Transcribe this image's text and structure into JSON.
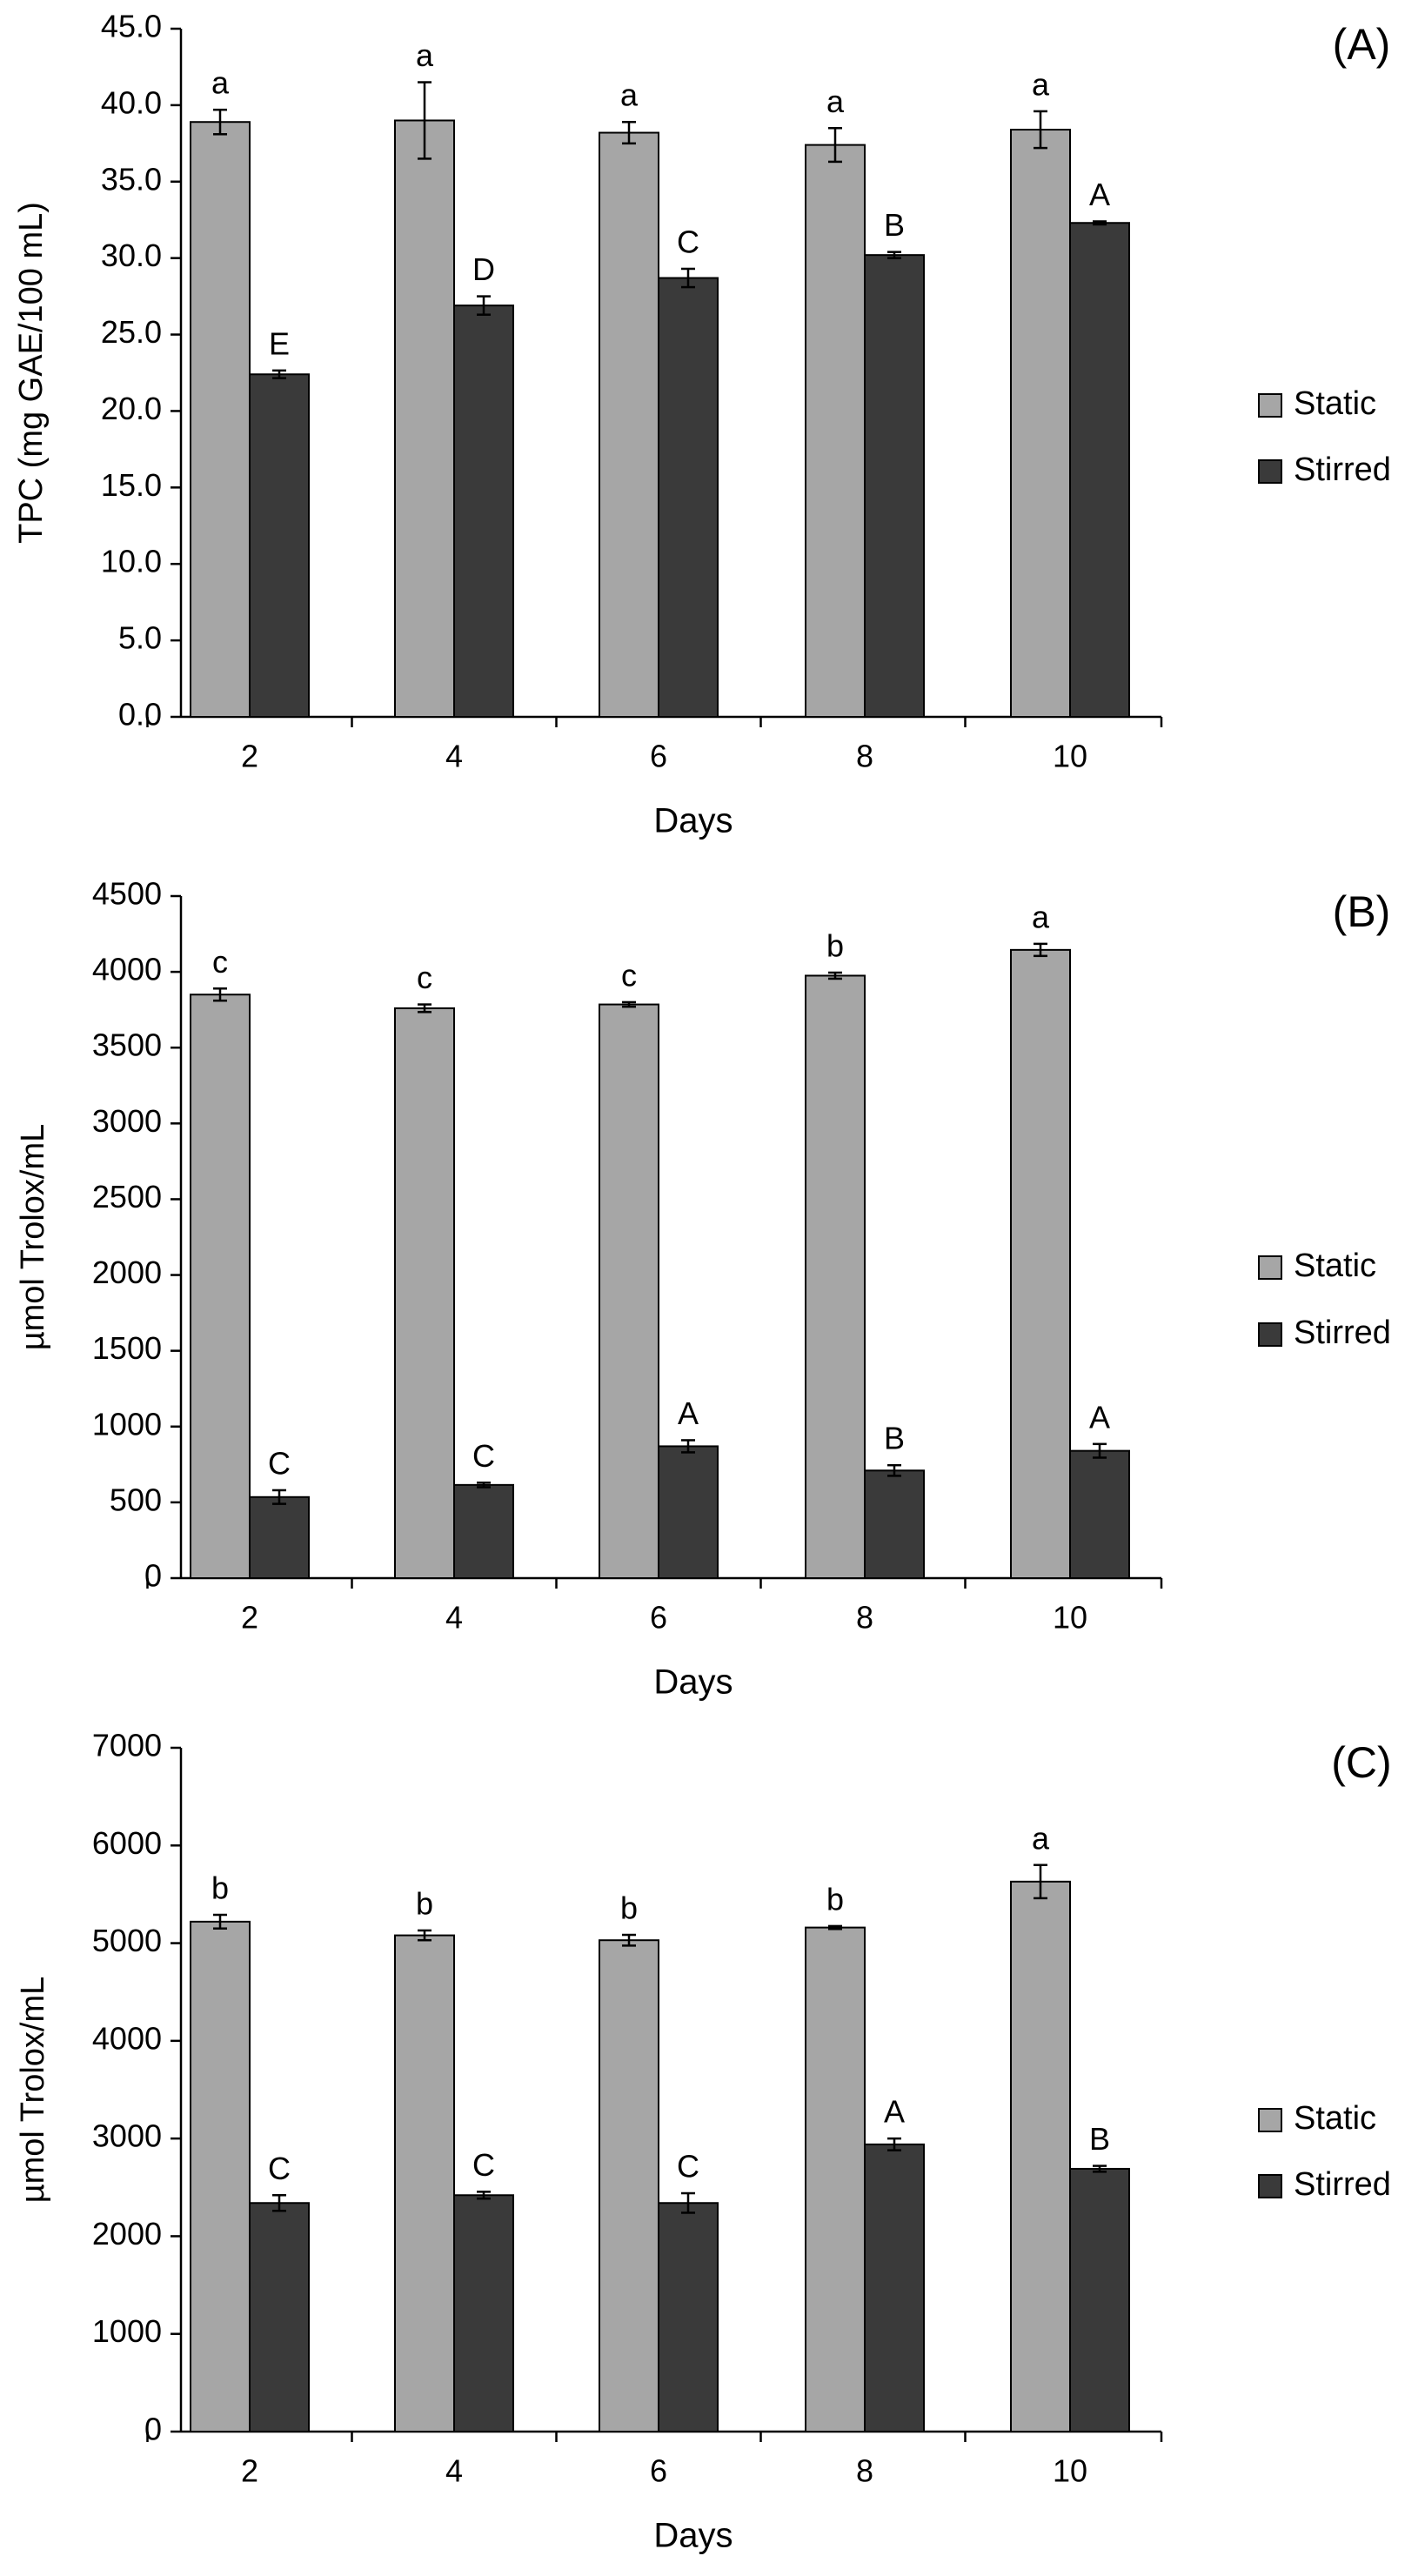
{
  "figure": {
    "colors": {
      "static": "#a6a6a6",
      "stirred": "#3a3a3a",
      "axis": "#000000",
      "bar_outline": "#000000"
    }
  },
  "chart_data": [
    {
      "panel_label": "(A)",
      "type": "bar",
      "xlabel": "Days",
      "ylabel": "TPC (mg GAE/100 mL)",
      "ylim": [
        0,
        45
      ],
      "yticks": [
        "0.0",
        "5.0",
        "10.0",
        "15.0",
        "20.0",
        "25.0",
        "30.0",
        "35.0",
        "40.0",
        "45.0"
      ],
      "categories": [
        "2",
        "4",
        "6",
        "8",
        "10"
      ],
      "grid": false,
      "legend_position": "right",
      "series": [
        {
          "name": "Static",
          "values": [
            38.9,
            39.0,
            38.2,
            37.4,
            38.4
          ],
          "errors": [
            0.8,
            2.5,
            0.7,
            1.1,
            1.2
          ],
          "labels": [
            "a",
            "a",
            "a",
            "a",
            "a"
          ]
        },
        {
          "name": "Stirred",
          "values": [
            22.4,
            26.9,
            28.7,
            30.2,
            32.3
          ],
          "errors": [
            0.25,
            0.6,
            0.6,
            0.2,
            0.1
          ],
          "labels": [
            "E",
            "D",
            "C",
            "B",
            "A"
          ]
        }
      ]
    },
    {
      "panel_label": "(B)",
      "type": "bar",
      "xlabel": "Days",
      "ylabel": "µmol Trolox/mL",
      "ylim": [
        0,
        4500
      ],
      "yticks": [
        "0",
        "500",
        "1000",
        "1500",
        "2000",
        "2500",
        "3000",
        "3500",
        "4000",
        "4500"
      ],
      "categories": [
        "2",
        "4",
        "6",
        "8",
        "10"
      ],
      "grid": false,
      "legend_position": "right",
      "series": [
        {
          "name": "Static",
          "values": [
            3850,
            3760,
            3785,
            3975,
            4145
          ],
          "errors": [
            40,
            25,
            15,
            20,
            40
          ],
          "labels": [
            "c",
            "c",
            "c",
            "b",
            "a"
          ]
        },
        {
          "name": "Stirred",
          "values": [
            535,
            615,
            870,
            710,
            840
          ],
          "errors": [
            45,
            15,
            40,
            35,
            45
          ],
          "labels": [
            "C",
            "C",
            "A",
            "B",
            "A"
          ]
        }
      ]
    },
    {
      "panel_label": "(C)",
      "type": "bar",
      "xlabel": "Days",
      "ylabel": "µmol Trolox/mL",
      "ylim": [
        0,
        7000
      ],
      "yticks": [
        "0",
        "1000",
        "2000",
        "3000",
        "4000",
        "5000",
        "6000",
        "7000"
      ],
      "categories": [
        "2",
        "4",
        "6",
        "8",
        "10"
      ],
      "grid": false,
      "legend_position": "right",
      "series": [
        {
          "name": "Static",
          "values": [
            5220,
            5080,
            5030,
            5160,
            5630
          ],
          "errors": [
            70,
            50,
            55,
            15,
            170
          ],
          "labels": [
            "b",
            "b",
            "b",
            "b",
            "a"
          ]
        },
        {
          "name": "Stirred",
          "values": [
            2340,
            2420,
            2340,
            2940,
            2690
          ],
          "errors": [
            80,
            35,
            100,
            60,
            30
          ],
          "labels": [
            "C",
            "C",
            "C",
            "A",
            "B"
          ]
        }
      ]
    }
  ]
}
